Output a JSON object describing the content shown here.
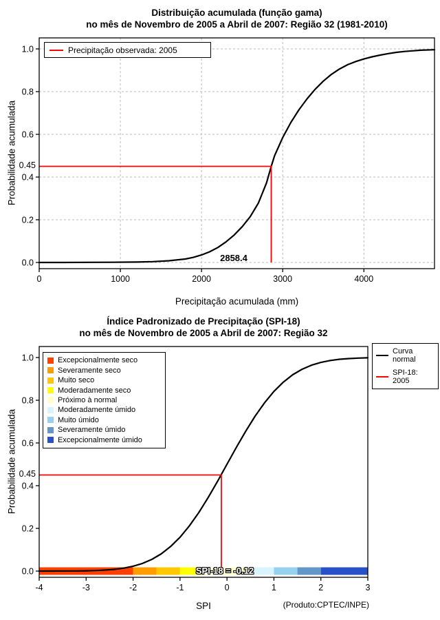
{
  "page": {
    "background": "#FFFFFF"
  },
  "chart_data": [
    {
      "type": "line",
      "title": "Distribuição acumulada (função gama)",
      "subtitle": "no mês de Novembro de 2005 a Abril de 2007: Região 32 (1981-2010)",
      "xlabel": "Precipitação acumulada (mm)",
      "ylabel": "Probabilidade acumulada",
      "xlim": [
        0,
        4870
      ],
      "ylim": [
        0,
        1
      ],
      "grid": true,
      "x_tick_values": [
        0,
        1000,
        2000,
        3000,
        4000
      ],
      "x_ticks": [
        "0",
        "1000",
        "2000",
        "3000",
        "4000"
      ],
      "y_tick_values": [
        0,
        0.2,
        0.4,
        0.6,
        0.8,
        1.0
      ],
      "y_ticks": [
        "0.0",
        "0.2",
        "0.4",
        "0.6",
        "0.8",
        "1.0"
      ],
      "curve_color": "#000000",
      "legend": {
        "position": "top-left",
        "entries": [
          {
            "color": "#FF0000",
            "label": "Precipitação observada: 2005"
          }
        ]
      },
      "annotation": {
        "color": "#FF0000",
        "x": 2858.4,
        "y": 0.45,
        "x_label": "2858.4",
        "y_label": "0.45"
      },
      "curve": [
        [
          0,
          0
        ],
        [
          300,
          0
        ],
        [
          600,
          0.0005
        ],
        [
          900,
          0.001
        ],
        [
          1200,
          0.002
        ],
        [
          1400,
          0.004
        ],
        [
          1600,
          0.008
        ],
        [
          1800,
          0.016
        ],
        [
          1900,
          0.024
        ],
        [
          2000,
          0.035
        ],
        [
          2100,
          0.05
        ],
        [
          2200,
          0.07
        ],
        [
          2300,
          0.096
        ],
        [
          2400,
          0.128
        ],
        [
          2500,
          0.167
        ],
        [
          2600,
          0.215
        ],
        [
          2700,
          0.278
        ],
        [
          2800,
          0.372
        ],
        [
          2858.4,
          0.45
        ],
        [
          2900,
          0.5
        ],
        [
          3000,
          0.585
        ],
        [
          3100,
          0.655
        ],
        [
          3200,
          0.715
        ],
        [
          3300,
          0.766
        ],
        [
          3400,
          0.811
        ],
        [
          3500,
          0.849
        ],
        [
          3600,
          0.881
        ],
        [
          3700,
          0.906
        ],
        [
          3800,
          0.926
        ],
        [
          3900,
          0.941
        ],
        [
          4000,
          0.953
        ],
        [
          4100,
          0.963
        ],
        [
          4200,
          0.971
        ],
        [
          4300,
          0.978
        ],
        [
          4400,
          0.984
        ],
        [
          4500,
          0.988
        ],
        [
          4600,
          0.991
        ],
        [
          4700,
          0.994
        ],
        [
          4870,
          0.996
        ]
      ]
    },
    {
      "type": "line",
      "title": "Índice Padronizado de Precipitação (SPI-18)",
      "subtitle": "no mês de Novembro de 2005 a Abril de 2007: Região 32",
      "xlabel": "SPI",
      "ylabel": "Probabilidade acumulada",
      "xlim": [
        -4,
        3
      ],
      "ylim": [
        0,
        1
      ],
      "grid": false,
      "x_tick_values": [
        -4,
        -3,
        -2,
        -1,
        0,
        1,
        2,
        3
      ],
      "x_ticks": [
        "-4",
        "-3",
        "-2",
        "-1",
        "0",
        "1",
        "2",
        "3"
      ],
      "y_tick_values": [
        0,
        0.2,
        0.4,
        0.6,
        0.8,
        1.0
      ],
      "y_ticks": [
        "0.0",
        "0.2",
        "0.4",
        "0.6",
        "0.8",
        "1.0"
      ],
      "curve_color": "#000000",
      "annotation": {
        "color": "#FF0000",
        "x": -0.12,
        "y": 0.45,
        "y_label": "0.45"
      },
      "bar_label": "SPI-18 = -0.12",
      "credit": "(Produto:CPTEC/INPE)",
      "categories": [
        {
          "label": "Excepcionalmente seco",
          "color": "#FF4000"
        },
        {
          "label": "Severamente seco",
          "color": "#FF9C00"
        },
        {
          "label": "Muito seco",
          "color": "#FFC800"
        },
        {
          "label": "Moderadamente seco",
          "color": "#FFFF00"
        },
        {
          "label": "Próximo à normal",
          "color": "#FFFFC8"
        },
        {
          "label": "Moderadamente úmido",
          "color": "#D8F4FF"
        },
        {
          "label": "Muito úmido",
          "color": "#96D2F0"
        },
        {
          "label": "Severamente úmido",
          "color": "#6496C8"
        },
        {
          "label": "Excepcionalmente úmido",
          "color": "#2850C8"
        }
      ],
      "curve_legend": [
        {
          "label": "Curva\nnormal",
          "color": "#000000"
        },
        {
          "label": "SPI-18: 2005",
          "color": "#FF0000"
        }
      ],
      "color_bar": {
        "segments": [
          {
            "from": -4,
            "to": -2,
            "color": "#FF4000"
          },
          {
            "from": -2,
            "to": -1.5,
            "color": "#FF9C00"
          },
          {
            "from": -1.5,
            "to": -1,
            "color": "#FFC800"
          },
          {
            "from": -1,
            "to": -0.5,
            "color": "#FFFF00"
          },
          {
            "from": -0.5,
            "to": 0.5,
            "color": "#FFFFC8"
          },
          {
            "from": 0.5,
            "to": 1,
            "color": "#D8F4FF"
          },
          {
            "from": 1,
            "to": 1.5,
            "color": "#96D2F0"
          },
          {
            "from": 1.5,
            "to": 2,
            "color": "#6496C8"
          },
          {
            "from": 2,
            "to": 3,
            "color": "#2850C8"
          }
        ]
      },
      "curve": [
        [
          -4,
          0.0001
        ],
        [
          -3.6,
          0.0002
        ],
        [
          -3.2,
          0.0007
        ],
        [
          -3,
          0.0013
        ],
        [
          -2.8,
          0.0026
        ],
        [
          -2.6,
          0.0047
        ],
        [
          -2.4,
          0.0082
        ],
        [
          -2.2,
          0.0139
        ],
        [
          -2,
          0.0228
        ],
        [
          -1.8,
          0.0359
        ],
        [
          -1.6,
          0.0548
        ],
        [
          -1.4,
          0.0808
        ],
        [
          -1.2,
          0.1151
        ],
        [
          -1,
          0.1587
        ],
        [
          -0.8,
          0.2119
        ],
        [
          -0.6,
          0.2743
        ],
        [
          -0.4,
          0.3446
        ],
        [
          -0.2,
          0.4207
        ],
        [
          -0.12,
          0.4522
        ],
        [
          0,
          0.5
        ],
        [
          0.2,
          0.5793
        ],
        [
          0.4,
          0.6554
        ],
        [
          0.6,
          0.7257
        ],
        [
          0.8,
          0.7881
        ],
        [
          1,
          0.8413
        ],
        [
          1.2,
          0.8849
        ],
        [
          1.4,
          0.9192
        ],
        [
          1.6,
          0.9452
        ],
        [
          1.8,
          0.9641
        ],
        [
          2,
          0.9772
        ],
        [
          2.2,
          0.9861
        ],
        [
          2.4,
          0.9918
        ],
        [
          2.6,
          0.9953
        ],
        [
          2.8,
          0.9974
        ],
        [
          3,
          0.9987
        ]
      ]
    }
  ]
}
